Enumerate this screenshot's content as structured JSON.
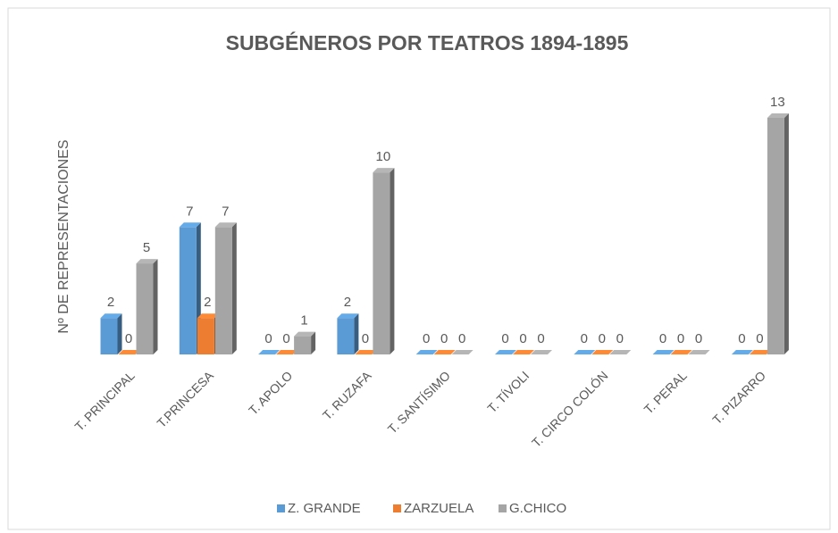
{
  "chart_data": {
    "type": "bar3d",
    "title": "SUBGÉNEROS POR TEATROS 1894-1895",
    "y_label": "Nº DE REPRESENTACIONES",
    "categories": [
      "T. PRINCIPAL",
      "T.PRINCESA",
      "T. APOLO",
      "T. RUZAFA",
      "T. SANTÍSIMO",
      "T. TÍVOLI",
      "T. CIRCO COLÓN",
      "T. PERAL",
      "T. PIZARRO"
    ],
    "series": [
      {
        "name": "Z. GRANDE",
        "color": "#5b9bd5",
        "values": [
          2,
          7,
          0,
          2,
          0,
          0,
          0,
          0,
          0
        ]
      },
      {
        "name": "ZARZUELA",
        "color": "#ed7d31",
        "values": [
          0,
          2,
          0,
          0,
          0,
          0,
          0,
          0,
          0
        ]
      },
      {
        "name": "G.CHICO",
        "color": "#a5a5a5",
        "values": [
          5,
          7,
          1,
          10,
          0,
          0,
          0,
          0,
          13
        ]
      }
    ],
    "legend": "bottom"
  }
}
